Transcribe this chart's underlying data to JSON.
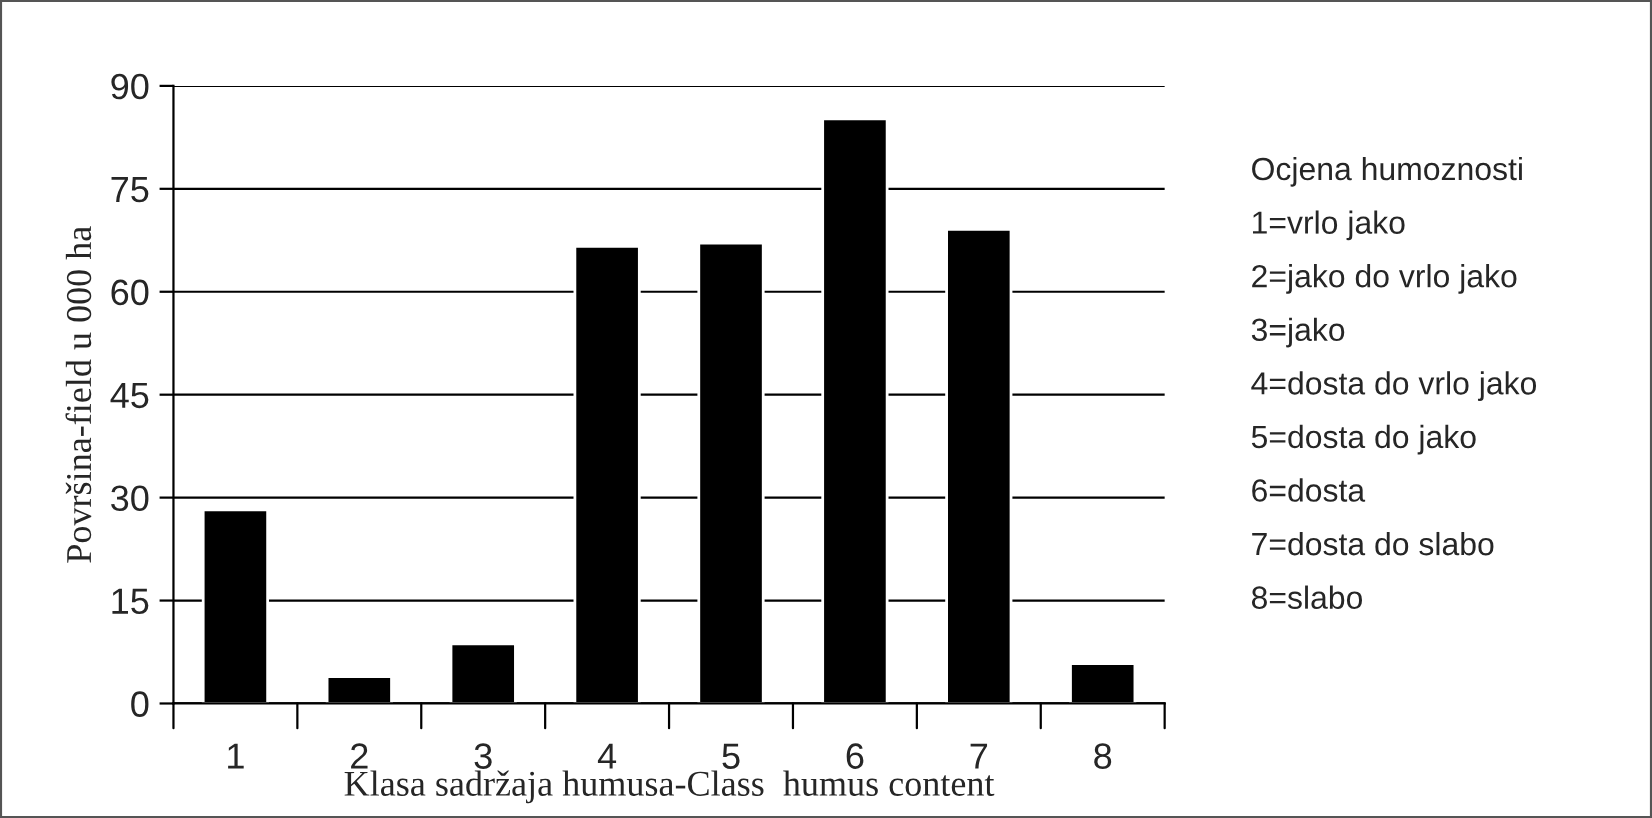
{
  "chart_data": {
    "type": "bar",
    "xlabel": "Klasa sadržaja humusa-Class  humus content",
    "ylabel": "Površina-field u 000 ha",
    "categories": [
      "1",
      "2",
      "3",
      "4",
      "5",
      "6",
      "7",
      "8"
    ],
    "values": [
      28.2,
      3.9,
      8.7,
      66.6,
      67.1,
      85.2,
      69.1,
      5.8
    ],
    "color": "#000000",
    "ylim": [
      0,
      90
    ],
    "yticks": [
      0,
      15,
      30,
      45,
      60,
      75,
      90
    ],
    "grid": "y",
    "annotations": [
      "Ocjena humoznosti",
      "1=vrlo jako",
      "2=jako do vrlo jako",
      "3=jako",
      "4=dosta do vrlo jako",
      "5=dosta do jako",
      "6=dosta",
      "7=dosta do slabo",
      "8=slabo"
    ]
  }
}
